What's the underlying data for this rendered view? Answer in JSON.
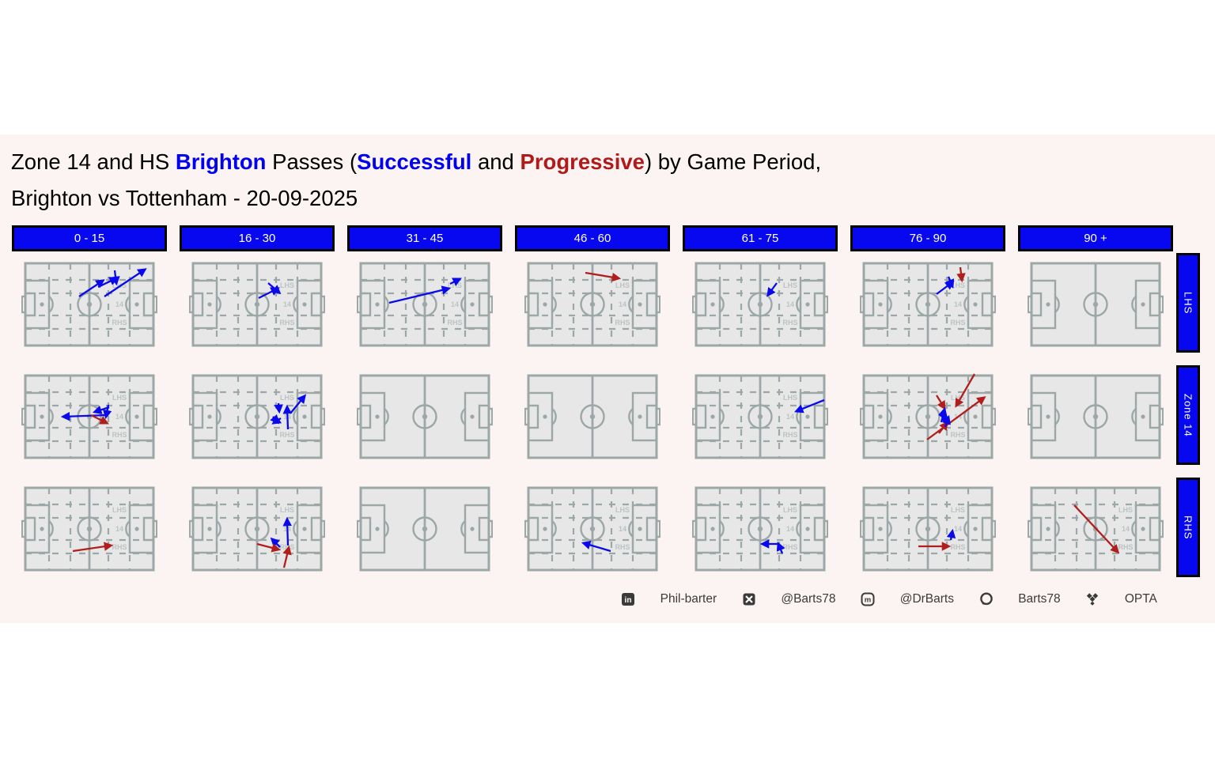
{
  "title": {
    "segments": [
      {
        "text": "Zone 14 and HS ",
        "style": "black"
      },
      {
        "text": "Brighton",
        "style": "blue-bold"
      },
      {
        "text": " Passes (",
        "style": "black"
      },
      {
        "text": "Successful",
        "style": "blue-bold"
      },
      {
        "text": " and ",
        "style": "black"
      },
      {
        "text": "Progressive",
        "style": "red-bold"
      },
      {
        "text": ") by Game Period,",
        "style": "black"
      }
    ],
    "line2": "Brighton vs Tottenham - 20-09-2025"
  },
  "colors": {
    "panel_bg": "#FCF4F2",
    "header_bg": "#0707F0",
    "header_text": "#FFFFFF",
    "pitch_fill": "#E7E7E7",
    "pitch_line": "#9CA7A7",
    "zone_label": "#BCC3C3",
    "successful_blue": "#0909EC",
    "progressive_red": "#B01E1E",
    "title_blue": "#0000EE",
    "title_red": "#AF1B1B",
    "footer_text": "#3A3A3A"
  },
  "chart_data": {
    "type": "scatter",
    "subtype": "pass_map_small_multiples",
    "title": "Zone 14 and HS Brighton Passes (Successful and Progressive) by Game Period, Brighton vs Tottenham - 20-09-2025",
    "columns": [
      "0 - 15",
      "16 - 30",
      "31 - 45",
      "46 - 60",
      "61 - 75",
      "76 - 90",
      "90 +"
    ],
    "rows": [
      "LHS",
      "Zone 14",
      "RHS"
    ],
    "pitch_zone_labels": [
      "LHS",
      "14",
      "RHS"
    ],
    "legend": {
      "successful": "blue arrows",
      "progressive": "dark red arrows"
    },
    "arrow_format": "[x1,y1,x2,y2,type] in 172x110 pitch coords; type s=Successful(blue), p=Progressive(red)",
    "cells": [
      {
        "row": "LHS",
        "period": "0 - 15",
        "grid": true,
        "arrows": [
          [
            105,
            45,
            156,
            11,
            "s"
          ],
          [
            118,
            12,
            120,
            28,
            "s"
          ],
          [
            97,
            33,
            120,
            22,
            "s"
          ],
          [
            73,
            45,
            103,
            25,
            "s"
          ]
        ]
      },
      {
        "row": "LHS",
        "period": "16 - 30",
        "grid": true,
        "arrows": [
          [
            88,
            47,
            112,
            35,
            "s"
          ],
          [
            100,
            28,
            114,
            40,
            "s"
          ]
        ]
      },
      {
        "row": "LHS",
        "period": "31 - 45",
        "grid": true,
        "arrows": [
          [
            41,
            53,
            116,
            35,
            "s"
          ],
          [
            118,
            29,
            130,
            23,
            "s"
          ]
        ]
      },
      {
        "row": "LHS",
        "period": "46 - 60",
        "grid": true,
        "arrows": [
          [
            77,
            15,
            119,
            22,
            "p"
          ]
        ]
      },
      {
        "row": "LHS",
        "period": "61 - 75",
        "grid": true,
        "arrows": [
          [
            107,
            28,
            96,
            43,
            "s"
          ]
        ]
      },
      {
        "row": "LHS",
        "period": "76 - 90",
        "grid": true,
        "arrows": [
          [
            97,
            42,
            117,
            27,
            "s"
          ],
          [
            112,
            20,
            117,
            32,
            "s"
          ],
          [
            127,
            8,
            129,
            24,
            "p"
          ]
        ]
      },
      {
        "row": "LHS",
        "period": "90 +",
        "grid": false,
        "arrows": []
      },
      {
        "row": "Zone 14",
        "period": "0 - 15",
        "grid": true,
        "arrows": [
          [
            108,
            53,
            53,
            55,
            "s"
          ],
          [
            111,
            43,
            93,
            49,
            "s"
          ],
          [
            110,
            40,
            107,
            55,
            "s"
          ],
          [
            88,
            53,
            108,
            63,
            "p"
          ]
        ]
      },
      {
        "row": "Zone 14",
        "period": "16 - 30",
        "grid": true,
        "arrows": [
          [
            128,
            51,
            146,
            29,
            "s"
          ],
          [
            125,
            71,
            124,
            43,
            "s"
          ],
          [
            113,
            38,
            114,
            48,
            "s"
          ],
          [
            106,
            55,
            112,
            62,
            "s"
          ],
          [
            116,
            57,
            107,
            63,
            "s"
          ]
        ]
      },
      {
        "row": "Zone 14",
        "period": "31 - 45",
        "grid": false,
        "arrows": []
      },
      {
        "row": "Zone 14",
        "period": "46 - 60",
        "grid": false,
        "arrows": []
      },
      {
        "row": "Zone 14",
        "period": "61 - 75",
        "grid": true,
        "arrows": [
          [
            167,
            34,
            132,
            48,
            "s"
          ]
        ]
      },
      {
        "row": "Zone 14",
        "period": "76 - 90",
        "grid": true,
        "arrows": [
          [
            145,
            1,
            122,
            41,
            "p"
          ],
          [
            97,
            28,
            107,
            44,
            "p"
          ],
          [
            85,
            84,
            157,
            31,
            "p"
          ],
          [
            100,
            76,
            110,
            63,
            "p"
          ],
          [
            103,
            62,
            107,
            46,
            "s"
          ],
          [
            100,
            52,
            112,
            60,
            "s"
          ],
          [
            108,
            68,
            112,
            56,
            "s"
          ]
        ]
      },
      {
        "row": "Zone 14",
        "period": "90 +",
        "grid": false,
        "arrows": []
      },
      {
        "row": "RHS",
        "period": "0 - 15",
        "grid": true,
        "arrows": [
          [
            65,
            83,
            113,
            76,
            "p"
          ]
        ]
      },
      {
        "row": "RHS",
        "period": "16 - 30",
        "grid": true,
        "arrows": [
          [
            125,
            76,
            124,
            43,
            "s"
          ],
          [
            115,
            78,
            105,
            68,
            "s"
          ],
          [
            86,
            74,
            113,
            81,
            "p"
          ],
          [
            120,
            104,
            126,
            79,
            "p"
          ]
        ]
      },
      {
        "row": "RHS",
        "period": "31 - 45",
        "grid": false,
        "arrows": []
      },
      {
        "row": "RHS",
        "period": "46 - 60",
        "grid": true,
        "arrows": [
          [
            109,
            83,
            75,
            73,
            "s"
          ]
        ]
      },
      {
        "row": "RHS",
        "period": "61 - 75",
        "grid": true,
        "arrows": [
          [
            110,
            74,
            89,
            74,
            "s"
          ],
          [
            114,
            86,
            109,
            74,
            "s"
          ]
        ]
      },
      {
        "row": "RHS",
        "period": "76 - 90",
        "grid": true,
        "arrows": [
          [
            74,
            77,
            112,
            77,
            "p"
          ],
          [
            115,
            69,
            117,
            58,
            "s"
          ]
        ]
      },
      {
        "row": "RHS",
        "period": "90 +",
        "grid": true,
        "arrows": [
          [
            59,
            25,
            114,
            84,
            "p"
          ]
        ]
      }
    ]
  },
  "footer": {
    "items": [
      {
        "icon": "linkedin-icon",
        "label": "Phil-barter"
      },
      {
        "icon": "x-icon",
        "label": "@Barts78"
      },
      {
        "icon": "mastodon-icon",
        "label": "@DrBarts"
      },
      {
        "icon": "github-icon",
        "label": "Barts78"
      },
      {
        "icon": "dropbox-icon",
        "label": "OPTA"
      }
    ]
  }
}
